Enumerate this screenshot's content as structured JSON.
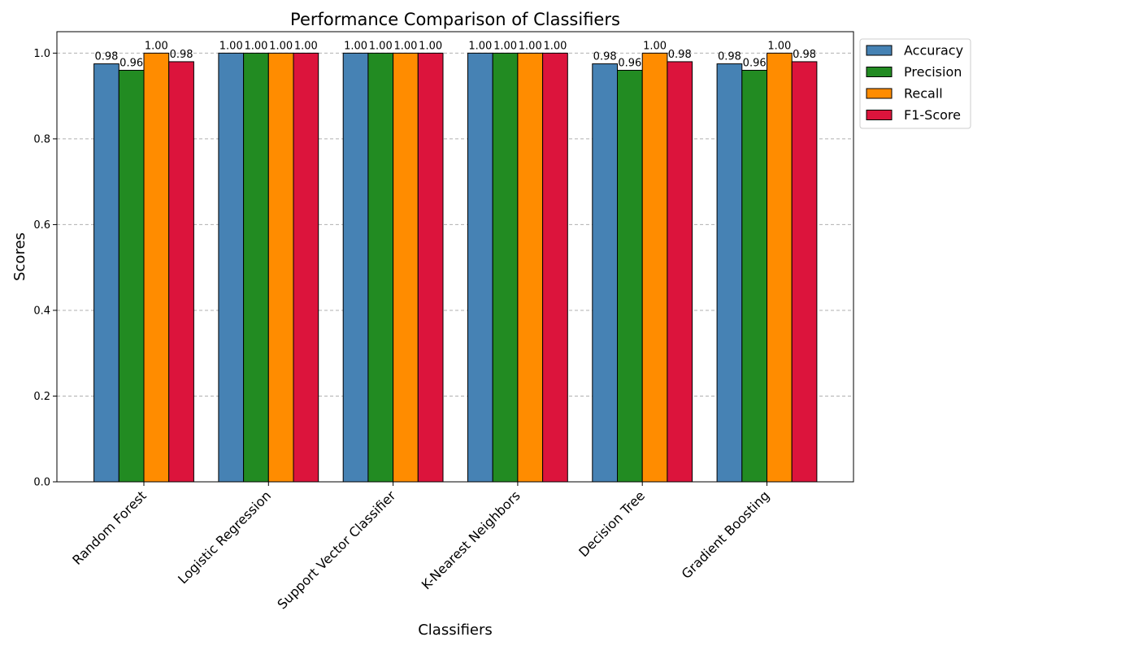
{
  "chart_data": {
    "type": "bar",
    "title": "Performance Comparison of Classifiers",
    "xlabel": "Classifiers",
    "ylabel": "Scores",
    "ylim": [
      0,
      1.05
    ],
    "yticks": [
      "0.0",
      "0.2",
      "0.4",
      "0.6",
      "0.8",
      "1.0"
    ],
    "ytick_values": [
      0,
      0.2,
      0.4,
      0.6,
      0.8,
      1.0
    ],
    "grid": "horizontal dashed",
    "legend_position": "outside-top-right",
    "categories": [
      "Random Forest",
      "Logistic Regression",
      "Support Vector Classifier",
      "K-Nearest Neighbors",
      "Decision Tree",
      "Gradient Boosting"
    ],
    "series": [
      {
        "name": "Accuracy",
        "color": "#4682B4",
        "values": [
          0.975,
          1.0,
          1.0,
          1.0,
          0.975,
          0.975
        ],
        "labels": [
          "0.98",
          "1.00",
          "1.00",
          "1.00",
          "0.98",
          "0.98"
        ]
      },
      {
        "name": "Precision",
        "color": "#228B22",
        "values": [
          0.96,
          1.0,
          1.0,
          1.0,
          0.96,
          0.96
        ],
        "labels": [
          "0.96",
          "1.00",
          "1.00",
          "1.00",
          "0.96",
          "0.96"
        ]
      },
      {
        "name": "Recall",
        "color": "#FF8C00",
        "values": [
          1.0,
          1.0,
          1.0,
          1.0,
          1.0,
          1.0
        ],
        "labels": [
          "1.00",
          "1.00",
          "1.00",
          "1.00",
          "1.00",
          "1.00"
        ]
      },
      {
        "name": "F1-Score",
        "color": "#DC143C",
        "values": [
          0.98,
          1.0,
          1.0,
          1.0,
          0.98,
          0.98
        ],
        "labels": [
          "0.98",
          "1.00",
          "1.00",
          "1.00",
          "0.98",
          "0.98"
        ]
      }
    ]
  }
}
